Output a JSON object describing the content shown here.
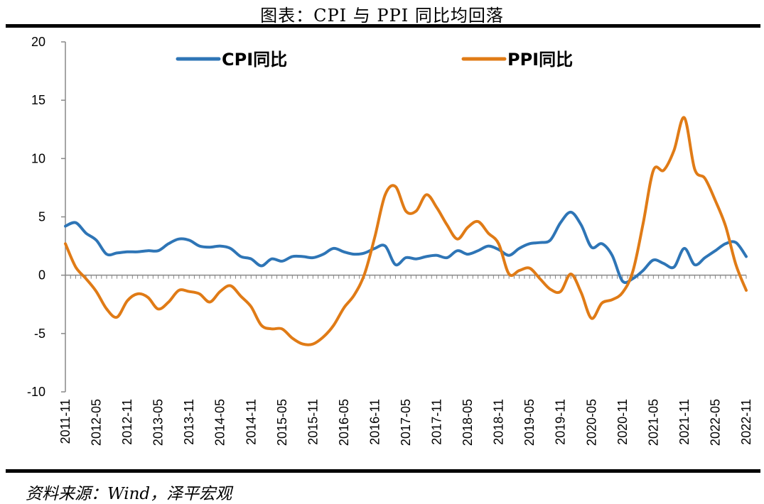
{
  "title": "图表：CPI 与 PPI 同比均回落",
  "source": "资料来源：Wind，泽平宏观",
  "chart_data": {
    "type": "line",
    "ylim": [
      -10,
      20
    ],
    "y_ticks": [
      -10,
      -5,
      0,
      5,
      10,
      15,
      20
    ],
    "x_tick_labels": [
      "2011-11",
      "2012-05",
      "2012-11",
      "2013-05",
      "2013-11",
      "2014-05",
      "2014-11",
      "2015-05",
      "2015-11",
      "2016-05",
      "2016-11",
      "2017-05",
      "2017-11",
      "2018-05",
      "2018-11",
      "2019-05",
      "2019-11",
      "2020-05",
      "2020-11",
      "2021-05",
      "2021-11",
      "2022-05",
      "2022-11"
    ],
    "legend_position": "top",
    "colors": {
      "CPI": "#2e75b6",
      "PPI": "#e07b16"
    },
    "series": [
      {
        "name": "CPI同比",
        "x": [
          "2011-11",
          "2012-01",
          "2012-03",
          "2012-05",
          "2012-07",
          "2012-09",
          "2012-11",
          "2013-01",
          "2013-03",
          "2013-05",
          "2013-07",
          "2013-09",
          "2013-11",
          "2014-01",
          "2014-03",
          "2014-05",
          "2014-07",
          "2014-09",
          "2014-11",
          "2015-01",
          "2015-03",
          "2015-05",
          "2015-07",
          "2015-09",
          "2015-11",
          "2016-01",
          "2016-03",
          "2016-05",
          "2016-07",
          "2016-09",
          "2016-11",
          "2017-01",
          "2017-03",
          "2017-05",
          "2017-07",
          "2017-09",
          "2017-11",
          "2018-01",
          "2018-03",
          "2018-05",
          "2018-07",
          "2018-09",
          "2018-11",
          "2019-01",
          "2019-03",
          "2019-05",
          "2019-07",
          "2019-09",
          "2019-11",
          "2020-01",
          "2020-03",
          "2020-05",
          "2020-07",
          "2020-09",
          "2020-11",
          "2021-01",
          "2021-03",
          "2021-05",
          "2021-07",
          "2021-09",
          "2021-11",
          "2022-01",
          "2022-03",
          "2022-05",
          "2022-07",
          "2022-09",
          "2022-11"
        ],
        "values": [
          4.2,
          4.5,
          3.6,
          3.0,
          1.8,
          1.9,
          2.0,
          2.0,
          2.1,
          2.1,
          2.7,
          3.1,
          3.0,
          2.5,
          2.4,
          2.5,
          2.3,
          1.6,
          1.4,
          0.8,
          1.4,
          1.2,
          1.6,
          1.6,
          1.5,
          1.8,
          2.3,
          2.0,
          1.8,
          1.9,
          2.3,
          2.5,
          0.9,
          1.5,
          1.4,
          1.6,
          1.7,
          1.5,
          2.1,
          1.8,
          2.1,
          2.5,
          2.2,
          1.7,
          2.3,
          2.7,
          2.8,
          3.0,
          4.5,
          5.4,
          4.3,
          2.4,
          2.7,
          1.7,
          -0.5,
          -0.3,
          0.4,
          1.3,
          1.0,
          0.7,
          2.3,
          0.9,
          1.5,
          2.1,
          2.7,
          2.8,
          1.6
        ]
      },
      {
        "name": "PPI同比",
        "x": [
          "2011-11",
          "2012-01",
          "2012-03",
          "2012-05",
          "2012-07",
          "2012-09",
          "2012-11",
          "2013-01",
          "2013-03",
          "2013-05",
          "2013-07",
          "2013-09",
          "2013-11",
          "2014-01",
          "2014-03",
          "2014-05",
          "2014-07",
          "2014-09",
          "2014-11",
          "2015-01",
          "2015-03",
          "2015-05",
          "2015-07",
          "2015-09",
          "2015-11",
          "2016-01",
          "2016-03",
          "2016-05",
          "2016-07",
          "2016-09",
          "2016-11",
          "2017-01",
          "2017-03",
          "2017-05",
          "2017-07",
          "2017-09",
          "2017-11",
          "2018-01",
          "2018-03",
          "2018-05",
          "2018-07",
          "2018-09",
          "2018-11",
          "2019-01",
          "2019-03",
          "2019-05",
          "2019-07",
          "2019-09",
          "2019-11",
          "2020-01",
          "2020-03",
          "2020-05",
          "2020-07",
          "2020-09",
          "2020-11",
          "2021-01",
          "2021-03",
          "2021-05",
          "2021-07",
          "2021-09",
          "2021-11",
          "2022-01",
          "2022-03",
          "2022-05",
          "2022-07",
          "2022-09",
          "2022-11"
        ],
        "values": [
          2.7,
          0.7,
          -0.3,
          -1.4,
          -2.9,
          -3.6,
          -2.2,
          -1.6,
          -1.9,
          -2.9,
          -2.3,
          -1.3,
          -1.4,
          -1.6,
          -2.3,
          -1.4,
          -0.9,
          -1.8,
          -2.7,
          -4.3,
          -4.6,
          -4.6,
          -5.4,
          -5.9,
          -5.9,
          -5.3,
          -4.3,
          -2.8,
          -1.7,
          0.1,
          3.3,
          6.9,
          7.6,
          5.5,
          5.5,
          6.9,
          5.8,
          4.3,
          3.1,
          4.1,
          4.6,
          3.6,
          2.7,
          0.1,
          0.4,
          0.6,
          -0.3,
          -1.2,
          -1.4,
          0.1,
          -1.5,
          -3.7,
          -2.4,
          -2.1,
          -1.5,
          0.3,
          4.4,
          9.0,
          9.0,
          10.7,
          13.5,
          9.1,
          8.3,
          6.4,
          4.2,
          0.9,
          -1.3
        ]
      }
    ]
  }
}
